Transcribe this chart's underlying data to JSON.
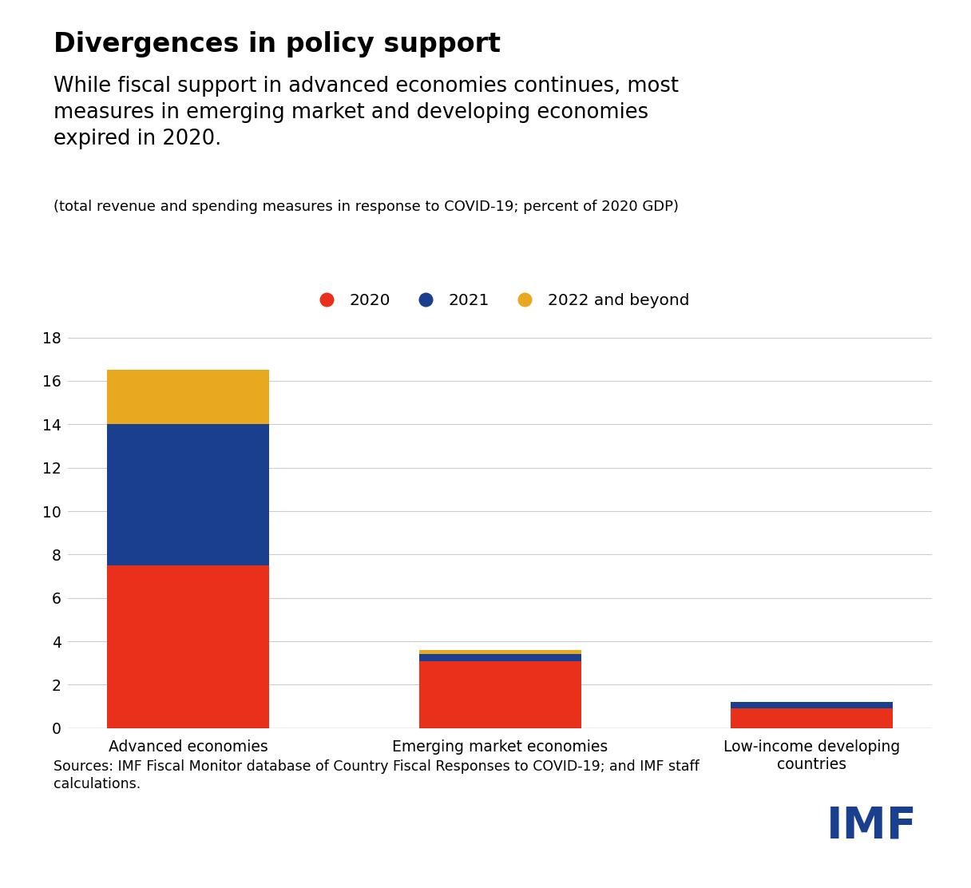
{
  "title_bold": "Divergences in policy support",
  "subtitle": "While fiscal support in advanced economies continues, most\nmeasures in emerging market and developing economies\nexpired in 2020.",
  "caption": "(total revenue and spending measures in response to COVID-19; percent of 2020 GDP)",
  "categories": [
    "Advanced economies",
    "Emerging market economies",
    "Low-income developing\ncountries"
  ],
  "values_2020": [
    7.5,
    3.1,
    0.9
  ],
  "values_2021": [
    6.5,
    0.3,
    0.3
  ],
  "values_2022": [
    2.5,
    0.2,
    0.0
  ],
  "color_2020": "#E8301A",
  "color_2021": "#1A3F8F",
  "color_2022": "#E8A820",
  "legend_labels": [
    "2020",
    "2021",
    "2022 and beyond"
  ],
  "ylim": [
    0,
    18
  ],
  "yticks": [
    0,
    2,
    4,
    6,
    8,
    10,
    12,
    14,
    16,
    18
  ],
  "source_text": "Sources: IMF Fiscal Monitor database of Country Fiscal Responses to COVID-19; and IMF staff\ncalculations.",
  "imf_color": "#1A3F8F",
  "background_color": "#FFFFFF"
}
